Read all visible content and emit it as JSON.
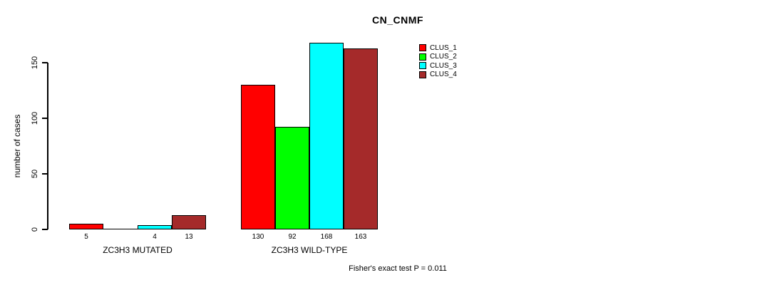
{
  "chart_data": {
    "type": "bar",
    "title": "CN_CNMF",
    "ylabel": "number of cases",
    "yticks": [
      "0",
      "50",
      "100",
      "150"
    ],
    "ylim": [
      0,
      150
    ],
    "grid": false,
    "legend_position": "top-right-inside",
    "series_names": [
      "CLUS_1",
      "CLUS_2",
      "CLUS_3",
      "CLUS_4"
    ],
    "series_colors": [
      "#ff0000",
      "#00ff00",
      "#00ffff",
      "#a52a2a"
    ],
    "groups": [
      {
        "label": "ZC3H3 MUTATED",
        "values": [
          5,
          0,
          4,
          13
        ],
        "bar_labels": [
          "5",
          null,
          "4",
          "13"
        ]
      },
      {
        "label": "ZC3H3 WILD-TYPE",
        "values": [
          130,
          92,
          168,
          163
        ],
        "bar_labels": [
          "130",
          "92",
          "168",
          "163"
        ]
      }
    ],
    "annotation": "Fisher's exact test P = 0.011"
  },
  "colors": {
    "axis": "#000000",
    "text": "#000000",
    "background": "#ffffff"
  }
}
